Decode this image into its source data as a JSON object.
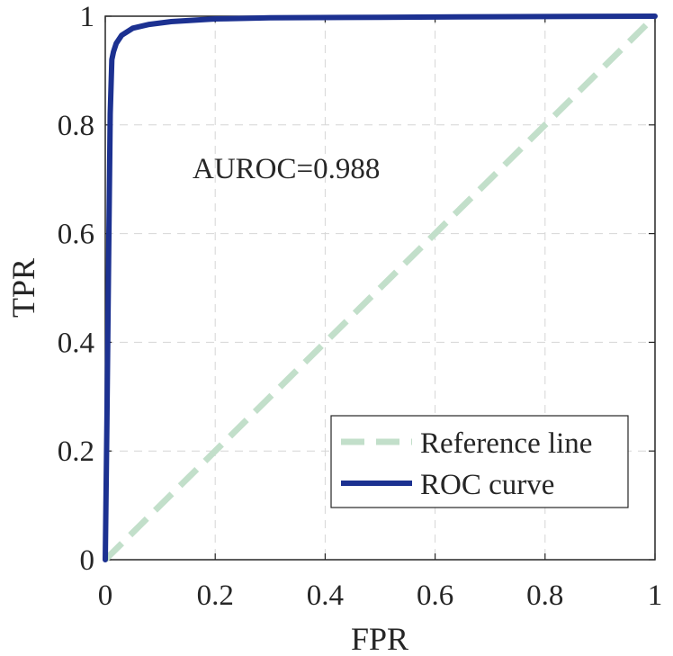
{
  "chart_data": {
    "type": "line",
    "title": "",
    "xlabel": "FPR",
    "ylabel": "TPR",
    "xlim": [
      0,
      1
    ],
    "ylim": [
      0,
      1
    ],
    "xticks": [
      0,
      0.2,
      0.4,
      0.6,
      0.8,
      1
    ],
    "yticks": [
      0,
      0.2,
      0.4,
      0.6,
      0.8,
      1
    ],
    "xtick_labels": [
      "0",
      "0.2",
      "0.4",
      "0.6",
      "0.8",
      "1"
    ],
    "ytick_labels": [
      "0",
      "0.2",
      "0.4",
      "0.6",
      "0.8",
      "1"
    ],
    "grid": true,
    "legend_position": "bottom-right",
    "annotation": "AUROC=0.988",
    "series": [
      {
        "name": "Reference line",
        "color": "#c2dfca",
        "style": "dashed",
        "x": [
          0,
          1
        ],
        "y": [
          0,
          1
        ]
      },
      {
        "name": "ROC curve",
        "color": "#1c3191",
        "style": "solid",
        "x": [
          0,
          0.003,
          0.006,
          0.009,
          0.012,
          0.015,
          0.02,
          0.03,
          0.05,
          0.08,
          0.12,
          0.2,
          0.3,
          0.5,
          0.7,
          1.0
        ],
        "y": [
          0,
          0.25,
          0.55,
          0.82,
          0.92,
          0.935,
          0.95,
          0.965,
          0.978,
          0.985,
          0.99,
          0.995,
          0.997,
          0.998,
          0.999,
          1.0
        ]
      }
    ]
  }
}
